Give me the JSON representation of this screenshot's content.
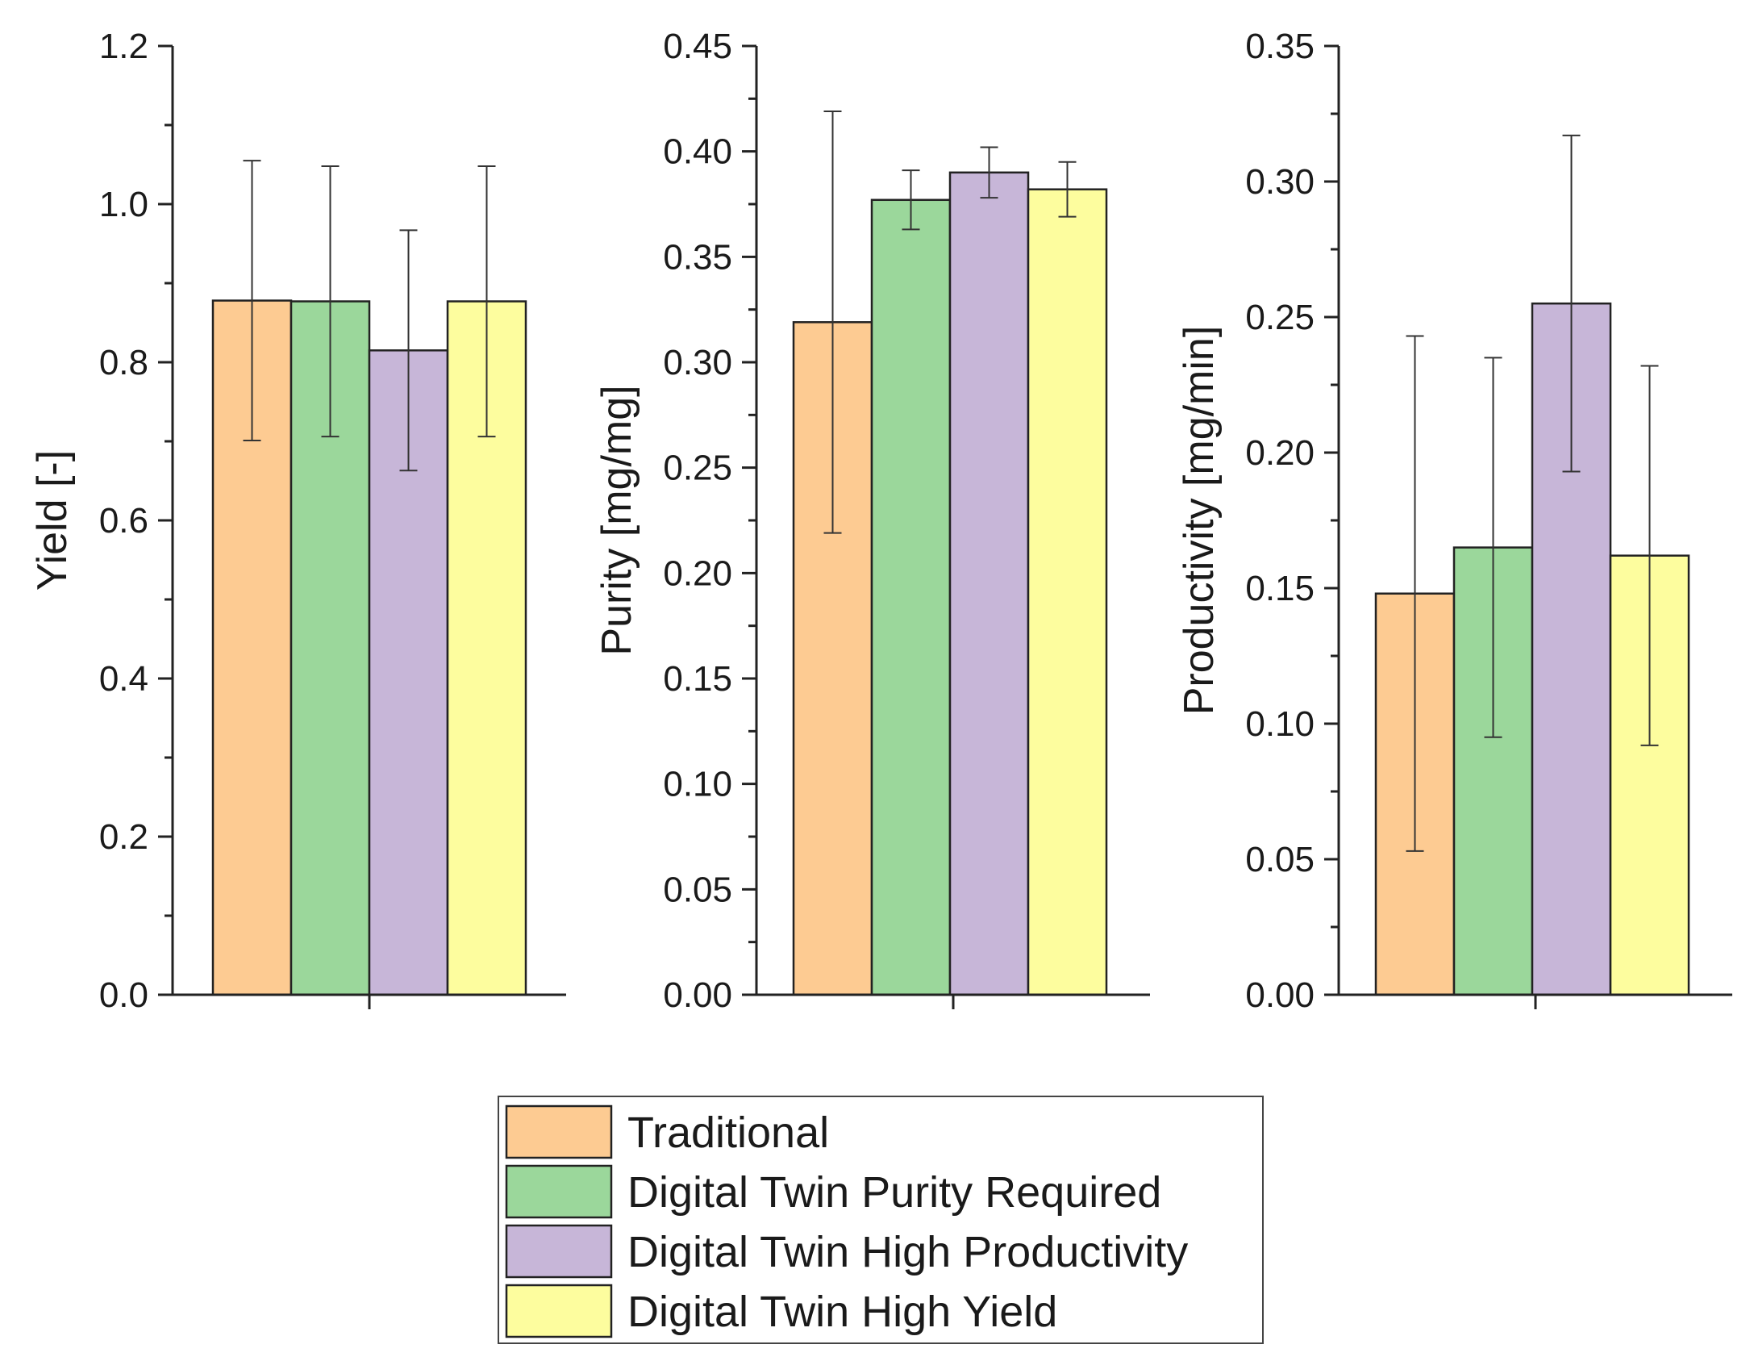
{
  "legend": {
    "items": [
      {
        "label": "Traditional",
        "color": "#FDCB92"
      },
      {
        "label": "Digital Twin Purity Required",
        "color": "#9BD79B"
      },
      {
        "label": "Digital Twin High Productivity",
        "color": "#C7B6D8"
      },
      {
        "label": "Digital Twin High Yield",
        "color": "#FDFD9E"
      }
    ]
  },
  "chart_data": [
    {
      "type": "bar",
      "series": [
        "Traditional",
        "Digital Twin Purity Required",
        "Digital Twin High Productivity",
        "Digital Twin High Yield"
      ],
      "values": [
        0.878,
        0.877,
        0.815,
        0.877
      ],
      "errors": [
        0.177,
        0.171,
        0.152,
        0.171
      ],
      "ylabel": "Yield [-]",
      "ylim": [
        0,
        1.2
      ],
      "yticks": [
        "0.0",
        "0.2",
        "0.4",
        "0.6",
        "0.8",
        "1.0",
        "1.2"
      ],
      "colors": [
        "#FDCB92",
        "#9BD79B",
        "#C7B6D8",
        "#FDFD9E"
      ]
    },
    {
      "type": "bar",
      "series": [
        "Traditional",
        "Digital Twin Purity Required",
        "Digital Twin High Productivity",
        "Digital Twin High Yield"
      ],
      "values": [
        0.319,
        0.377,
        0.39,
        0.382
      ],
      "errors": [
        0.1,
        0.014,
        0.012,
        0.013
      ],
      "ylabel": "Purity [mg/mg]",
      "ylim": [
        0,
        0.45
      ],
      "yticks": [
        "0.00",
        "0.05",
        "0.10",
        "0.15",
        "0.20",
        "0.25",
        "0.30",
        "0.35",
        "0.40",
        "0.45"
      ],
      "colors": [
        "#FDCB92",
        "#9BD79B",
        "#C7B6D8",
        "#FDFD9E"
      ]
    },
    {
      "type": "bar",
      "series": [
        "Traditional",
        "Digital Twin Purity Required",
        "Digital Twin High Productivity",
        "Digital Twin High Yield"
      ],
      "values": [
        0.148,
        0.165,
        0.255,
        0.162
      ],
      "errors": [
        0.095,
        0.07,
        0.062,
        0.07
      ],
      "ylabel": "Productivity [mg/min]",
      "ylim": [
        0,
        0.35
      ],
      "yticks": [
        "0.00",
        "0.05",
        "0.10",
        "0.15",
        "0.20",
        "0.25",
        "0.30",
        "0.35"
      ],
      "colors": [
        "#FDCB92",
        "#9BD79B",
        "#C7B6D8",
        "#FDFD9E"
      ]
    }
  ]
}
